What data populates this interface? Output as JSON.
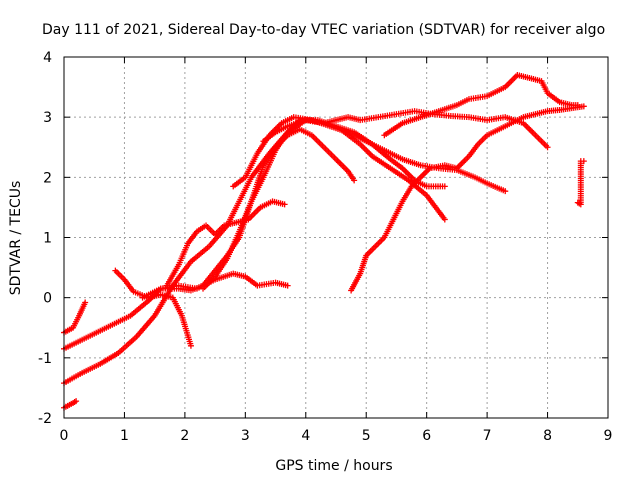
{
  "chart_data": {
    "type": "scatter",
    "title": "Day 111 of 2021, Sidereal Day-to-day VTEC variation (SDTVAR) for receiver algo",
    "xlabel": "GPS time / hours",
    "ylabel": "SDTVAR / TECUs",
    "xlim": [
      0,
      9
    ],
    "ylim": [
      -2,
      4
    ],
    "xticks": [
      "0",
      "1",
      "2",
      "3",
      "4",
      "5",
      "6",
      "7",
      "8",
      "9"
    ],
    "yticks": [
      "-2",
      "-1",
      "0",
      "1",
      "2",
      "3",
      "4"
    ],
    "grid": true,
    "marker": "+",
    "color": "#ff0000",
    "series": [
      {
        "name": "trace-1",
        "points": [
          [
            0,
            -1.83
          ],
          [
            0.15,
            -1.75
          ],
          [
            0.2,
            -1.72
          ]
        ]
      },
      {
        "name": "trace-2",
        "points": [
          [
            0,
            -1.42
          ],
          [
            0.3,
            -1.25
          ],
          [
            0.6,
            -1.1
          ],
          [
            0.9,
            -0.92
          ],
          [
            1.2,
            -0.65
          ],
          [
            1.5,
            -0.3
          ],
          [
            1.8,
            0.2
          ],
          [
            2.1,
            0.6
          ],
          [
            2.4,
            0.85
          ],
          [
            2.7,
            1.2
          ],
          [
            2.9,
            1.6
          ],
          [
            3.1,
            2.0
          ],
          [
            3.4,
            2.4
          ],
          [
            3.7,
            2.75
          ],
          [
            4.0,
            2.95
          ],
          [
            4.3,
            2.9
          ],
          [
            4.6,
            2.78
          ],
          [
            4.9,
            2.55
          ],
          [
            5.1,
            2.35
          ],
          [
            5.4,
            2.15
          ],
          [
            5.7,
            1.95
          ],
          [
            6.0,
            1.7
          ],
          [
            6.3,
            1.3
          ]
        ]
      },
      {
        "name": "trace-3",
        "points": [
          [
            0,
            -0.85
          ],
          [
            0.3,
            -0.7
          ],
          [
            0.6,
            -0.55
          ],
          [
            0.8,
            -0.45
          ],
          [
            1.1,
            -0.3
          ],
          [
            1.4,
            -0.05
          ],
          [
            1.6,
            0.15
          ],
          [
            1.9,
            0.2
          ],
          [
            2.2,
            0.15
          ],
          [
            2.5,
            0.3
          ],
          [
            2.8,
            0.4
          ],
          [
            3.0,
            0.35
          ],
          [
            3.2,
            0.2
          ],
          [
            3.5,
            0.25
          ],
          [
            3.7,
            0.2
          ]
        ]
      },
      {
        "name": "trace-4",
        "points": [
          [
            0,
            -0.58
          ],
          [
            0.15,
            -0.5
          ],
          [
            0.25,
            -0.3
          ],
          [
            0.35,
            -0.08
          ]
        ]
      },
      {
        "name": "trace-5",
        "points": [
          [
            0.85,
            0.45
          ],
          [
            1.0,
            0.3
          ],
          [
            1.15,
            0.1
          ],
          [
            1.4,
            0.0
          ],
          [
            1.6,
            0.05
          ],
          [
            1.8,
            0.0
          ],
          [
            1.95,
            -0.3
          ],
          [
            2.1,
            -0.8
          ]
        ]
      },
      {
        "name": "trace-6",
        "points": [
          [
            1.7,
            0.2
          ],
          [
            1.9,
            0.55
          ],
          [
            2.05,
            0.9
          ],
          [
            2.2,
            1.1
          ],
          [
            2.35,
            1.2
          ],
          [
            2.5,
            1.05
          ],
          [
            2.65,
            1.2
          ],
          [
            2.85,
            1.25
          ],
          [
            3.05,
            1.3
          ],
          [
            3.25,
            1.5
          ],
          [
            3.45,
            1.6
          ],
          [
            3.65,
            1.55
          ]
        ]
      },
      {
        "name": "trace-7",
        "points": [
          [
            1.3,
            0.0
          ],
          [
            1.6,
            0.15
          ],
          [
            1.9,
            0.15
          ],
          [
            2.1,
            0.12
          ],
          [
            2.3,
            0.2
          ],
          [
            2.5,
            0.45
          ],
          [
            2.7,
            0.7
          ],
          [
            2.9,
            1.0
          ],
          [
            3.1,
            1.6
          ],
          [
            3.3,
            2.2
          ],
          [
            3.5,
            2.5
          ],
          [
            3.7,
            2.7
          ],
          [
            3.9,
            2.8
          ],
          [
            4.1,
            2.7
          ],
          [
            4.4,
            2.4
          ],
          [
            4.7,
            2.1
          ],
          [
            4.8,
            1.95
          ]
        ]
      },
      {
        "name": "trace-8",
        "points": [
          [
            2.8,
            1.85
          ],
          [
            3.0,
            2.0
          ],
          [
            3.2,
            2.4
          ],
          [
            3.4,
            2.7
          ],
          [
            3.6,
            2.9
          ],
          [
            3.8,
            3.0
          ],
          [
            4.1,
            2.95
          ],
          [
            4.4,
            2.85
          ],
          [
            4.7,
            2.75
          ],
          [
            5.0,
            2.6
          ],
          [
            5.3,
            2.45
          ],
          [
            5.6,
            2.3
          ],
          [
            5.9,
            2.2
          ],
          [
            6.2,
            2.15
          ],
          [
            6.5,
            2.12
          ],
          [
            6.8,
            2.0
          ],
          [
            7.0,
            1.9
          ],
          [
            7.3,
            1.77
          ]
        ]
      },
      {
        "name": "trace-9",
        "points": [
          [
            2.3,
            0.15
          ],
          [
            2.5,
            0.35
          ],
          [
            2.7,
            0.65
          ],
          [
            2.9,
            1.1
          ],
          [
            3.1,
            1.6
          ],
          [
            3.3,
            2.0
          ],
          [
            3.5,
            2.45
          ],
          [
            3.7,
            2.75
          ],
          [
            3.9,
            2.95
          ],
          [
            4.2,
            2.95
          ],
          [
            4.5,
            2.85
          ],
          [
            4.8,
            2.75
          ],
          [
            5.1,
            2.55
          ],
          [
            5.4,
            2.3
          ],
          [
            5.6,
            2.15
          ],
          [
            5.8,
            1.95
          ],
          [
            6.0,
            1.85
          ],
          [
            6.3,
            1.85
          ]
        ]
      },
      {
        "name": "trace-10",
        "points": [
          [
            3.3,
            2.6
          ],
          [
            3.5,
            2.75
          ],
          [
            3.7,
            2.85
          ],
          [
            4.0,
            2.95
          ],
          [
            4.3,
            2.9
          ],
          [
            4.5,
            2.95
          ],
          [
            4.7,
            3.0
          ],
          [
            4.9,
            2.95
          ],
          [
            5.2,
            3.0
          ],
          [
            5.5,
            3.05
          ],
          [
            5.8,
            3.1
          ],
          [
            6.1,
            3.05
          ],
          [
            6.4,
            3.02
          ],
          [
            6.7,
            3.0
          ],
          [
            7.0,
            2.95
          ],
          [
            7.3,
            3.0
          ],
          [
            7.6,
            2.9
          ],
          [
            7.8,
            2.7
          ],
          [
            8.0,
            2.5
          ]
        ]
      },
      {
        "name": "trace-11",
        "points": [
          [
            4.75,
            0.12
          ],
          [
            4.9,
            0.4
          ],
          [
            5.0,
            0.7
          ],
          [
            5.15,
            0.85
          ],
          [
            5.3,
            1.0
          ],
          [
            5.45,
            1.3
          ],
          [
            5.6,
            1.6
          ],
          [
            5.75,
            1.85
          ],
          [
            5.9,
            2.0
          ],
          [
            6.05,
            2.15
          ],
          [
            6.3,
            2.2
          ],
          [
            6.5,
            2.15
          ],
          [
            6.7,
            2.35
          ],
          [
            6.85,
            2.55
          ],
          [
            7.0,
            2.7
          ],
          [
            7.2,
            2.8
          ],
          [
            7.4,
            2.9
          ],
          [
            7.6,
            3.0
          ],
          [
            7.8,
            3.05
          ],
          [
            8.0,
            3.1
          ],
          [
            8.2,
            3.12
          ],
          [
            8.4,
            3.15
          ],
          [
            8.6,
            3.18
          ]
        ]
      },
      {
        "name": "trace-12",
        "points": [
          [
            5.3,
            2.7
          ],
          [
            5.6,
            2.9
          ],
          [
            5.9,
            3.0
          ],
          [
            6.2,
            3.1
          ],
          [
            6.5,
            3.2
          ],
          [
            6.7,
            3.3
          ],
          [
            7.0,
            3.35
          ],
          [
            7.3,
            3.5
          ],
          [
            7.5,
            3.7
          ],
          [
            7.7,
            3.65
          ],
          [
            7.9,
            3.6
          ],
          [
            8.0,
            3.4
          ],
          [
            8.2,
            3.25
          ],
          [
            8.4,
            3.2
          ],
          [
            8.5,
            3.2
          ]
        ]
      },
      {
        "name": "trace-13",
        "points": [
          [
            8.5,
            1.58
          ],
          [
            8.55,
            1.55
          ],
          [
            8.55,
            2.27
          ],
          [
            8.6,
            2.27
          ]
        ]
      }
    ]
  }
}
